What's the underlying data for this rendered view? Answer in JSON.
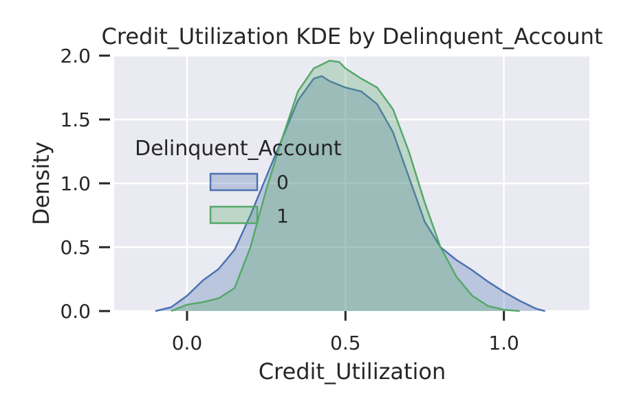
{
  "chart_data": {
    "type": "area",
    "title": "Credit_Utilization KDE by Delinquent_Account",
    "xlabel": "Credit_Utilization",
    "ylabel": "Density",
    "xlim": [
      -0.23,
      1.27
    ],
    "ylim": [
      0,
      2.0
    ],
    "x_ticks": [
      0.0,
      0.5,
      1.0
    ],
    "x_tick_labels": [
      "0.0",
      "0.5",
      "1.0"
    ],
    "y_ticks": [
      0.0,
      0.5,
      1.0,
      1.5,
      2.0
    ],
    "y_tick_labels": [
      "0.0",
      "0.5",
      "1.0",
      "1.5",
      "2.0"
    ],
    "grid": true,
    "legend": {
      "title": "Delinquent_Account",
      "placement": "center-left"
    },
    "series": [
      {
        "name": "0",
        "color": "#4c72b0",
        "x": [
          -0.1,
          -0.05,
          0.0,
          0.05,
          0.1,
          0.15,
          0.2,
          0.25,
          0.3,
          0.35,
          0.4,
          0.425,
          0.45,
          0.5,
          0.55,
          0.6,
          0.65,
          0.7,
          0.75,
          0.8,
          0.85,
          0.9,
          0.95,
          1.0,
          1.05,
          1.1,
          1.13
        ],
        "y": [
          0.0,
          0.03,
          0.12,
          0.24,
          0.33,
          0.48,
          0.75,
          1.05,
          1.35,
          1.65,
          1.82,
          1.84,
          1.8,
          1.75,
          1.72,
          1.62,
          1.4,
          1.05,
          0.7,
          0.5,
          0.4,
          0.32,
          0.23,
          0.15,
          0.08,
          0.02,
          0.0
        ]
      },
      {
        "name": "1",
        "color": "#55a868",
        "x": [
          -0.05,
          0.0,
          0.05,
          0.1,
          0.15,
          0.2,
          0.25,
          0.3,
          0.35,
          0.4,
          0.45,
          0.48,
          0.5,
          0.55,
          0.6,
          0.65,
          0.7,
          0.75,
          0.8,
          0.85,
          0.9,
          0.95,
          1.0,
          1.05
        ],
        "y": [
          0.0,
          0.05,
          0.07,
          0.1,
          0.18,
          0.5,
          0.95,
          1.35,
          1.72,
          1.9,
          1.96,
          1.95,
          1.9,
          1.82,
          1.75,
          1.58,
          1.25,
          0.85,
          0.5,
          0.27,
          0.12,
          0.04,
          0.01,
          0.0
        ]
      }
    ]
  }
}
